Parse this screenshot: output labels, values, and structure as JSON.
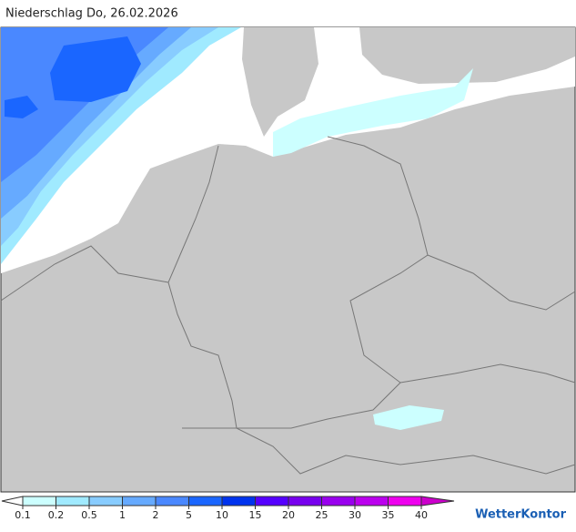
{
  "header": {
    "title": "Niederschlag Do, 26.02.2026"
  },
  "legend": {
    "labels": [
      0.1,
      0.2,
      0.5,
      1,
      2,
      5,
      10,
      15,
      20,
      25,
      30,
      35,
      40
    ],
    "colors": [
      "#ffffff",
      "#ccffff",
      "#a0eaff",
      "#88ccff",
      "#66aaff",
      "#4a88ff",
      "#1a66ff",
      "#0033ee",
      "#5500ff",
      "#7700ee",
      "#9900ee",
      "#bb00ee",
      "#ee00ee",
      "#cc00cc"
    ]
  },
  "brand": "WetterKontor"
}
